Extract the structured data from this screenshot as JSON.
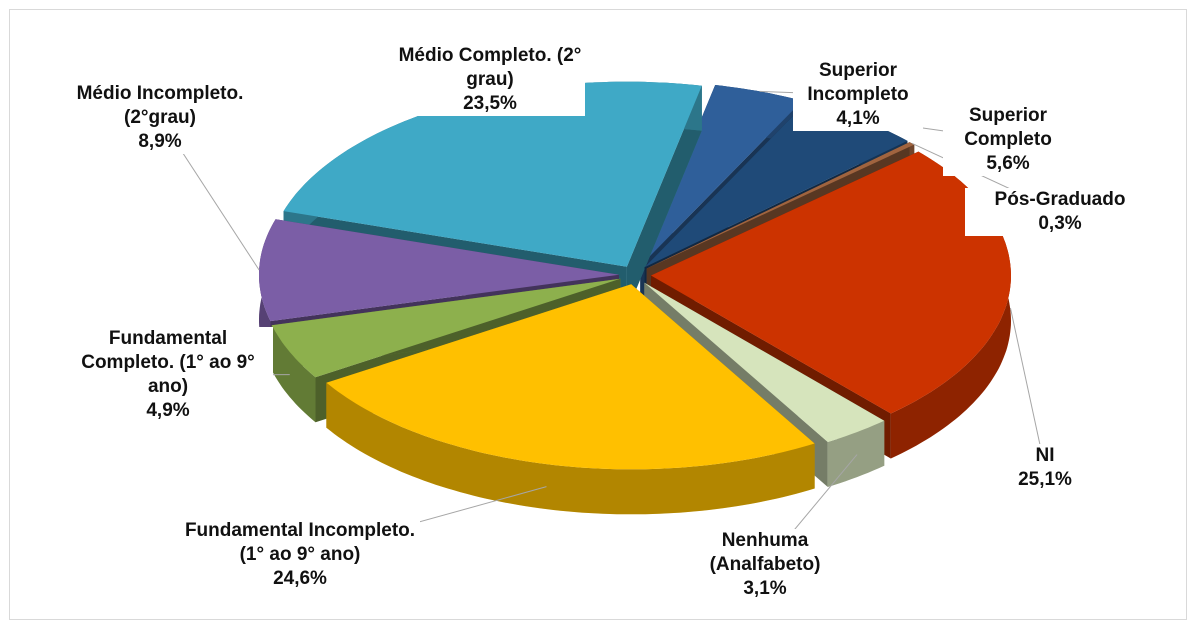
{
  "chart_data": {
    "type": "pie",
    "categories": [
      "Superior Incompleto",
      "Superior Completo",
      "Pós-Graduado",
      "NI",
      "Nenhuma (Analfabeto)",
      "Fundamental Incompleto. (1° ao 9° ano)",
      "Fundamental Completo. (1° ao 9° ano)",
      "Médio Incompleto. (2°grau)",
      "Médio Completo. (2° grau)"
    ],
    "values": [
      4.1,
      5.6,
      0.3,
      25.1,
      3.1,
      24.6,
      4.9,
      8.9,
      23.5
    ],
    "value_labels": [
      "4,1%",
      "5,6%",
      "0,3%",
      "25,1%",
      "3,1%",
      "24,6%",
      "4,9%",
      "8,9%",
      "23,5%"
    ],
    "colors": [
      "#2f5f9a",
      "#1f4a78",
      "#a0643f",
      "#cc3300",
      "#d6e4bc",
      "#ffc000",
      "#8db04d",
      "#7b5ea6",
      "#3fa9c6"
    ]
  }
}
